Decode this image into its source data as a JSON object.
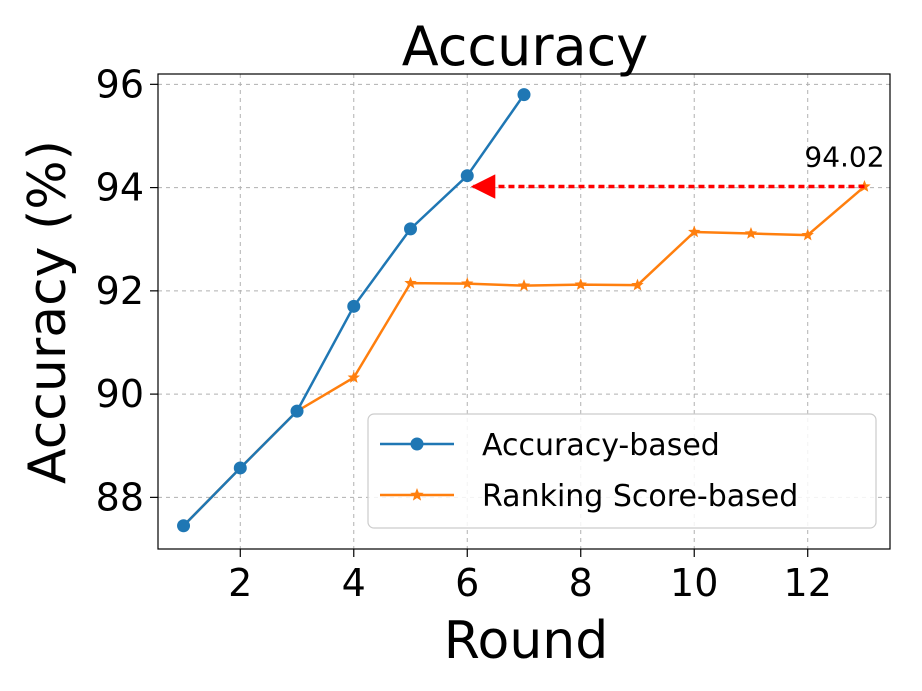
{
  "chart_data": {
    "type": "line",
    "title": "Accuracy",
    "xlabel": "Round",
    "ylabel": "Accuracy (%)",
    "xlim": [
      0.55,
      13.45
    ],
    "ylim": [
      87.0,
      96.2
    ],
    "xticks": [
      2,
      4,
      6,
      8,
      10,
      12
    ],
    "yticks": [
      88,
      90,
      92,
      94,
      96
    ],
    "grid": true,
    "legend_position": "lower-right",
    "series": [
      {
        "name": "Accuracy-based",
        "color": "#1f77b4",
        "marker": "circle",
        "x": [
          1,
          2,
          3,
          4,
          5,
          6,
          7
        ],
        "y": [
          87.45,
          88.57,
          89.67,
          91.7,
          93.2,
          94.23,
          95.8
        ]
      },
      {
        "name": "Ranking Score-based",
        "color": "#ff7f0e",
        "marker": "star",
        "x": [
          1,
          2,
          3,
          4,
          5,
          6,
          7,
          8,
          9,
          10,
          11,
          12,
          13
        ],
        "y": [
          87.45,
          88.57,
          89.67,
          90.32,
          92.15,
          92.14,
          92.1,
          92.12,
          92.11,
          93.14,
          93.11,
          93.08,
          94.02
        ]
      }
    ],
    "annotations": [
      {
        "text": "94.02",
        "arrow_from": [
          13,
          94.02
        ],
        "arrow_to": [
          6,
          94.02
        ],
        "arrow_color": "#ff0000"
      }
    ]
  }
}
